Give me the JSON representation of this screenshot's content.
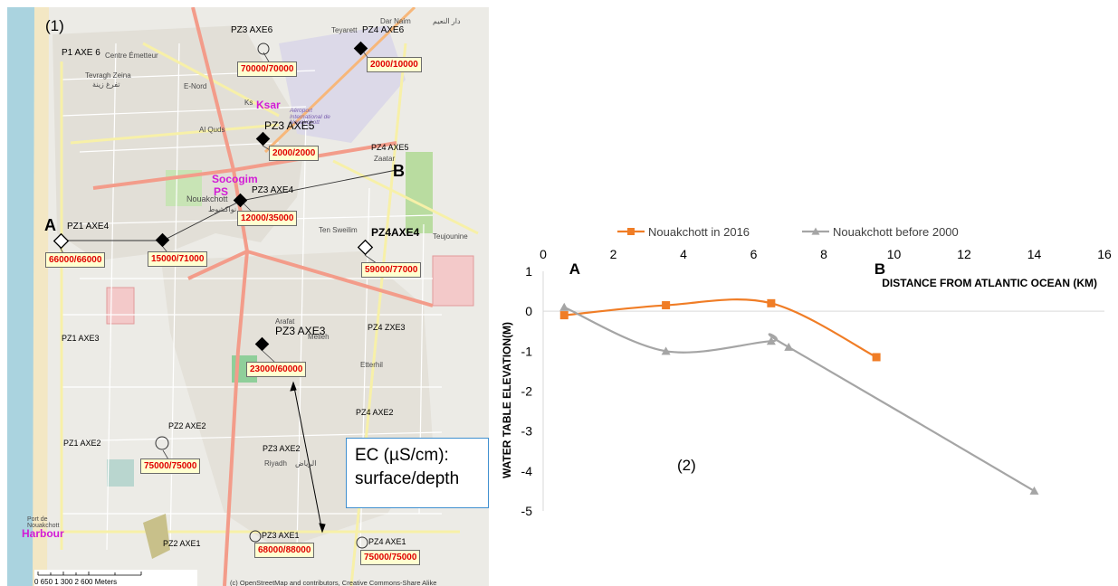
{
  "map": {
    "panel_label": "(1)",
    "place_labels": [
      {
        "id": "centre-emetteur",
        "text": "Centre Émetteur"
      },
      {
        "id": "tevragh-zeina",
        "text": "Tevragh Zeina"
      },
      {
        "id": "tevragh-zeina-ar",
        "text": "تفرغ زينة"
      },
      {
        "id": "e-nord",
        "text": "E-Nord"
      },
      {
        "id": "al-quds",
        "text": "Al Quds"
      },
      {
        "id": "teyarett",
        "text": "Teyarett"
      },
      {
        "id": "dar-naim",
        "text": "Dar Naim"
      },
      {
        "id": "dar-naim-ar",
        "text": "دار النعيم"
      },
      {
        "id": "aeroport",
        "text": "Aéroport International de Nouakchott"
      },
      {
        "id": "zaatar",
        "text": "Zaatar"
      },
      {
        "id": "nouakchott",
        "text": "Nouakchott"
      },
      {
        "id": "nouakchott-ar",
        "text": "نواكشوط"
      },
      {
        "id": "ten-sweilim",
        "text": "Ten Sweilim"
      },
      {
        "id": "teujounine",
        "text": "Teujounine"
      },
      {
        "id": "arafat",
        "text": "Arafat"
      },
      {
        "id": "melleh",
        "text": "Melleh"
      },
      {
        "id": "etterhil",
        "text": "Etterhil"
      },
      {
        "id": "riyadh",
        "text": "Riyadh"
      },
      {
        "id": "riyadh-ar",
        "text": "الرياض"
      },
      {
        "id": "port",
        "text": "Port de Nouakchott"
      },
      {
        "id": "ksar-small",
        "text": "Ks"
      }
    ],
    "highlight_labels": [
      {
        "id": "ksar",
        "text": "Ksar"
      },
      {
        "id": "socogim",
        "text": "Socogim"
      },
      {
        "id": "ps",
        "text": "PS"
      },
      {
        "id": "harbour",
        "text": "Harbour"
      }
    ],
    "section_points": [
      {
        "id": "A",
        "text": "A"
      },
      {
        "id": "B",
        "text": "B"
      }
    ],
    "wells": [
      {
        "id": "p1-axe6",
        "label": "P1 AXE 6",
        "symbol": "none",
        "ec": ""
      },
      {
        "id": "pz3-axe6",
        "label": "PZ3 AXE6",
        "symbol": "circle",
        "ec": "70000/70000"
      },
      {
        "id": "pz4-axe6",
        "label": "PZ4 AXE6",
        "symbol": "diamond-filled",
        "ec": "2000/10000"
      },
      {
        "id": "pz3-axe5",
        "label": "PZ3 AXE5",
        "symbol": "diamond-filled",
        "ec": "2000/2000"
      },
      {
        "id": "pz4-axe5",
        "label": "PZ4 AXE5",
        "symbol": "none",
        "ec": ""
      },
      {
        "id": "pz3-axe4",
        "label": "PZ3 AXE4",
        "symbol": "diamond-filled",
        "ec": "12000/35000"
      },
      {
        "id": "pz1-axe4",
        "label": "PZ1 AXE4",
        "symbol": "diamond-open",
        "ec": "66000/66000"
      },
      {
        "id": "pz2-axe4",
        "label": "",
        "symbol": "diamond-filled",
        "ec": "15000/71000"
      },
      {
        "id": "pz4-axe4",
        "label": "PZ4AXE4",
        "symbol": "diamond-open",
        "ec": "59000/77000"
      },
      {
        "id": "pz1-axe3",
        "label": "PZ1 AXE3",
        "symbol": "none",
        "ec": ""
      },
      {
        "id": "pz3-axe3",
        "label": "PZ3 AXE3",
        "symbol": "diamond-filled",
        "ec": "23000/60000"
      },
      {
        "id": "pz4-zxe3",
        "label": "PZ4 ZXE3",
        "symbol": "none",
        "ec": ""
      },
      {
        "id": "pz2-axe2",
        "label": "PZ2 AXE2",
        "symbol": "circle",
        "ec": "75000/75000"
      },
      {
        "id": "pz1-axe2",
        "label": "PZ1 AXE2",
        "symbol": "none",
        "ec": ""
      },
      {
        "id": "pz3-axe2",
        "label": "PZ3 AXE2",
        "symbol": "none",
        "ec": ""
      },
      {
        "id": "pz4-axe2",
        "label": "PZ4 AXE2",
        "symbol": "none",
        "ec": ""
      },
      {
        "id": "pz2-axe1",
        "label": "PZ2 AXE1",
        "symbol": "none",
        "ec": ""
      },
      {
        "id": "pz3-axe1",
        "label": "PZ3 AXE1",
        "symbol": "circle",
        "ec": "68000/88000"
      },
      {
        "id": "pz4-axe1",
        "label": "PZ4 AXE1",
        "symbol": "circle",
        "ec": "75000/75000"
      }
    ],
    "legend": {
      "line1": "EC (µS/cm):",
      "line2": "surface/depth"
    },
    "scale_bar": {
      "ticks": "0   650 1 300         2 600 Meters"
    },
    "credit": "(c) OpenStreetMap and contributors, Creative Commons-Share Alike",
    "colors": {
      "diamond": "#000000",
      "ec_text": "#e00000",
      "ec_fill": "#ffffd0",
      "highlight": "#d21bd6",
      "major_road": "#f39c8a",
      "legend_border": "#3f8fcf"
    }
  },
  "chart_data": {
    "type": "line",
    "panel_label": "(2)",
    "xlabel": "DISTANCE FROM ATLANTIC OCEAN (KM)",
    "ylabel": "WATER TABLE ELEVATION(M)",
    "xlim": [
      0,
      16
    ],
    "ylim": [
      -5,
      1
    ],
    "x_ticks": [
      0,
      2,
      4,
      6,
      8,
      10,
      12,
      14,
      16
    ],
    "y_ticks": [
      1,
      0,
      -1,
      -2,
      -3,
      -4,
      -5
    ],
    "x_axis_position": "top",
    "grid": false,
    "legend_position": "top",
    "section_markers": [
      {
        "label": "A",
        "x": 0.9
      },
      {
        "label": "B",
        "x": 9.6
      }
    ],
    "series": [
      {
        "name": "Nouakchott in 2016",
        "color": "#f07d26",
        "marker": "square",
        "smooth": true,
        "x": [
          0.6,
          3.5,
          6.5,
          9.5
        ],
        "y": [
          -0.1,
          0.15,
          0.2,
          -1.15
        ]
      },
      {
        "name": "Nouakchott before 2000",
        "color": "#a5a5a5",
        "marker": "triangle",
        "smooth": true,
        "x": [
          0.6,
          3.5,
          6.5,
          7.0,
          14.0
        ],
        "y": [
          0.1,
          -1.0,
          -0.75,
          -0.9,
          -4.5
        ]
      }
    ]
  }
}
